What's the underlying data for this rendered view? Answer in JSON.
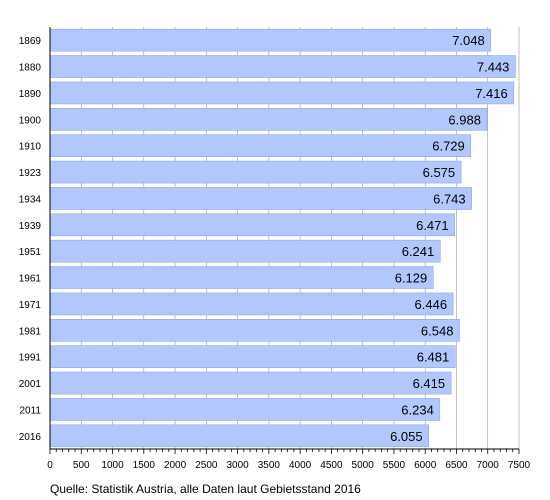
{
  "chart_data": {
    "type": "bar",
    "orientation": "horizontal",
    "categories": [
      "1869",
      "1880",
      "1890",
      "1900",
      "1910",
      "1923",
      "1934",
      "1939",
      "1951",
      "1961",
      "1971",
      "1981",
      "1991",
      "2001",
      "2011",
      "2016"
    ],
    "values": [
      7048,
      7443,
      7416,
      6988,
      6729,
      6575,
      6743,
      6471,
      6241,
      6129,
      6446,
      6548,
      6481,
      6415,
      6234,
      6055
    ],
    "value_labels": [
      "7.048",
      "7.443",
      "7.416",
      "6.988",
      "6.729",
      "6.575",
      "6.743",
      "6.471",
      "6.241",
      "6.129",
      "6.446",
      "6.548",
      "6.481",
      "6.415",
      "6.234",
      "6.055"
    ],
    "xlim": [
      0,
      7500
    ],
    "xticks": [
      0,
      500,
      1000,
      1500,
      2000,
      2500,
      3000,
      3500,
      4000,
      4500,
      5000,
      5500,
      6000,
      6500,
      7000,
      7500
    ],
    "grid": "vertical gridlines",
    "bar_color": "#b3c7ff",
    "bar_edge_color": "#8ea6e6",
    "grid_color": "#999999",
    "title": "",
    "xlabel": "",
    "ylabel": ""
  },
  "source_text": "Quelle: Statistik Austria, alle Daten laut Gebietsstand 2016"
}
